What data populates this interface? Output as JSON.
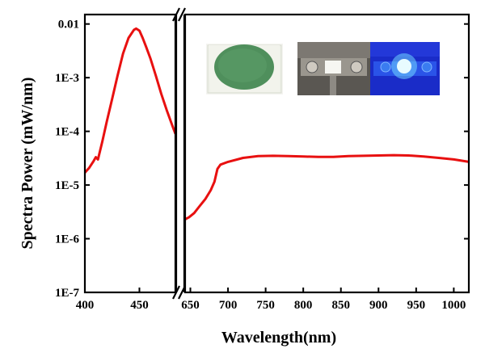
{
  "chart_data": {
    "type": "line",
    "xlabel": "Wavelength(nm)",
    "ylabel": "Spectra Power (mW/nm)",
    "y_scale": "log",
    "ylim": [
      1e-07,
      0.015
    ],
    "x_broken_axis": true,
    "x_segments": [
      {
        "range": [
          400,
          483
        ],
        "ticks": [
          400,
          450
        ]
      },
      {
        "range": [
          643,
          1020
        ],
        "ticks": [
          650,
          700,
          750,
          800,
          850,
          900,
          950,
          1000
        ]
      }
    ],
    "y_ticks": [
      {
        "value": 1e-07,
        "label": "1E-7"
      },
      {
        "value": 1e-06,
        "label": "1E-6"
      },
      {
        "value": 1e-05,
        "label": "1E-5"
      },
      {
        "value": 0.0001,
        "label": "1E-4"
      },
      {
        "value": 0.001,
        "label": "1E-3"
      },
      {
        "value": 0.01,
        "label": "0.01"
      }
    ],
    "series": [
      {
        "color": "#e81010",
        "segments": [
          {
            "x": [
              400,
              404,
              408,
              410,
              412,
              416,
              420,
              425,
              430,
              435,
              440,
              445,
              447,
              450,
              453,
              456,
              460,
              465,
              470,
              475,
              480,
              483
            ],
            "y": [
              1.7e-05,
              2.1e-05,
              2.8e-05,
              3.3e-05,
              3e-05,
              6.5e-05,
              0.00015,
              0.0004,
              0.0011,
              0.0028,
              0.0055,
              0.0078,
              0.0082,
              0.0075,
              0.0055,
              0.0038,
              0.0023,
              0.0011,
              0.0005,
              0.00025,
              0.00013,
              9e-05
            ]
          },
          {
            "x": [
              643,
              648,
              655,
              662,
              670,
              677,
              682,
              686,
              690,
              700,
              720,
              740,
              760,
              780,
              800,
              820,
              840,
              860,
              880,
              900,
              920,
              940,
              960,
              980,
              1000,
              1010,
              1020
            ],
            "y": [
              2.3e-06,
              2.5e-06,
              3e-06,
              4e-06,
              5.5e-06,
              8e-06,
              1.15e-05,
              2e-05,
              2.4e-05,
              2.7e-05,
              3.2e-05,
              3.45e-05,
              3.5e-05,
              3.45e-05,
              3.4e-05,
              3.35e-05,
              3.35e-05,
              3.45e-05,
              3.5e-05,
              3.55e-05,
              3.6e-05,
              3.55e-05,
              3.4e-05,
              3.2e-05,
              3e-05,
              2.85e-05,
              2.7e-05
            ]
          }
        ]
      }
    ],
    "inset_images": [
      "led-package-photo",
      "led-off-on-photo"
    ]
  }
}
